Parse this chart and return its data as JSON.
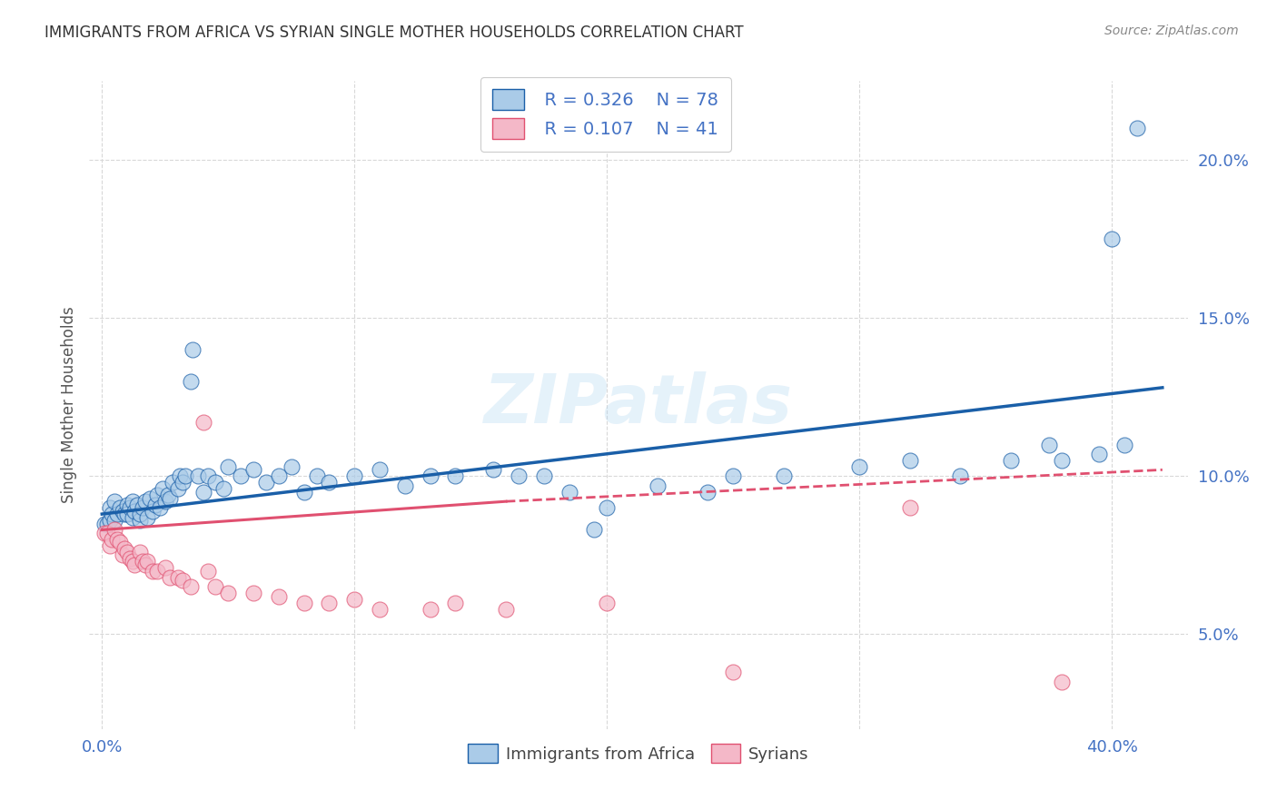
{
  "title": "IMMIGRANTS FROM AFRICA VS SYRIAN SINGLE MOTHER HOUSEHOLDS CORRELATION CHART",
  "source": "Source: ZipAtlas.com",
  "ylabel": "Single Mother Households",
  "watermark": "ZIPatlas",
  "legend_r1": "R = 0.326",
  "legend_n1": "N = 78",
  "legend_r2": "R = 0.107",
  "legend_n2": "N = 41",
  "color_blue": "#aacbe8",
  "color_pink": "#f4b8c8",
  "color_blue_line": "#1a5fa8",
  "color_pink_line": "#e05070",
  "background": "#ffffff",
  "grid_color": "#d8d8d8",
  "title_color": "#333333",
  "axis_label_color": "#4472c4",
  "blue_scatter_x": [
    0.001,
    0.002,
    0.003,
    0.003,
    0.004,
    0.005,
    0.005,
    0.006,
    0.007,
    0.008,
    0.009,
    0.01,
    0.01,
    0.011,
    0.012,
    0.012,
    0.013,
    0.014,
    0.015,
    0.015,
    0.016,
    0.017,
    0.018,
    0.019,
    0.02,
    0.021,
    0.022,
    0.023,
    0.024,
    0.025,
    0.026,
    0.027,
    0.028,
    0.03,
    0.031,
    0.032,
    0.033,
    0.035,
    0.036,
    0.038,
    0.04,
    0.042,
    0.045,
    0.048,
    0.05,
    0.055,
    0.06,
    0.065,
    0.07,
    0.075,
    0.08,
    0.085,
    0.09,
    0.1,
    0.11,
    0.12,
    0.13,
    0.14,
    0.155,
    0.165,
    0.175,
    0.185,
    0.195,
    0.2,
    0.22,
    0.24,
    0.25,
    0.27,
    0.3,
    0.32,
    0.34,
    0.36,
    0.375,
    0.38,
    0.395,
    0.4,
    0.405,
    0.41
  ],
  "blue_scatter_y": [
    0.085,
    0.085,
    0.09,
    0.086,
    0.088,
    0.086,
    0.092,
    0.088,
    0.09,
    0.089,
    0.088,
    0.091,
    0.088,
    0.09,
    0.087,
    0.092,
    0.089,
    0.091,
    0.086,
    0.088,
    0.09,
    0.092,
    0.087,
    0.093,
    0.089,
    0.091,
    0.094,
    0.09,
    0.096,
    0.092,
    0.094,
    0.093,
    0.098,
    0.096,
    0.1,
    0.098,
    0.1,
    0.13,
    0.14,
    0.1,
    0.095,
    0.1,
    0.098,
    0.096,
    0.103,
    0.1,
    0.102,
    0.098,
    0.1,
    0.103,
    0.095,
    0.1,
    0.098,
    0.1,
    0.102,
    0.097,
    0.1,
    0.1,
    0.102,
    0.1,
    0.1,
    0.095,
    0.083,
    0.09,
    0.097,
    0.095,
    0.1,
    0.1,
    0.103,
    0.105,
    0.1,
    0.105,
    0.11,
    0.105,
    0.107,
    0.175,
    0.11,
    0.21
  ],
  "pink_scatter_x": [
    0.001,
    0.002,
    0.003,
    0.004,
    0.005,
    0.006,
    0.007,
    0.008,
    0.009,
    0.01,
    0.011,
    0.012,
    0.013,
    0.015,
    0.016,
    0.017,
    0.018,
    0.02,
    0.022,
    0.025,
    0.027,
    0.03,
    0.032,
    0.035,
    0.04,
    0.042,
    0.045,
    0.05,
    0.06,
    0.07,
    0.08,
    0.09,
    0.1,
    0.11,
    0.13,
    0.14,
    0.16,
    0.2,
    0.25,
    0.32,
    0.38
  ],
  "pink_scatter_y": [
    0.082,
    0.082,
    0.078,
    0.08,
    0.083,
    0.08,
    0.079,
    0.075,
    0.077,
    0.076,
    0.074,
    0.073,
    0.072,
    0.076,
    0.073,
    0.072,
    0.073,
    0.07,
    0.07,
    0.071,
    0.068,
    0.068,
    0.067,
    0.065,
    0.117,
    0.07,
    0.065,
    0.063,
    0.063,
    0.062,
    0.06,
    0.06,
    0.061,
    0.058,
    0.058,
    0.06,
    0.058,
    0.06,
    0.038,
    0.09,
    0.035
  ],
  "xlim": [
    -0.005,
    0.43
  ],
  "ylim": [
    0.02,
    0.225
  ],
  "y_ticks": [
    0.05,
    0.1,
    0.15,
    0.2
  ],
  "y_tick_labels": [
    "5.0%",
    "10.0%",
    "15.0%",
    "20.0%"
  ],
  "x_ticks": [
    0.0,
    0.1,
    0.2,
    0.3,
    0.4
  ],
  "x_tick_labels": [
    "0.0%",
    "",
    "",
    "",
    "40.0%"
  ]
}
